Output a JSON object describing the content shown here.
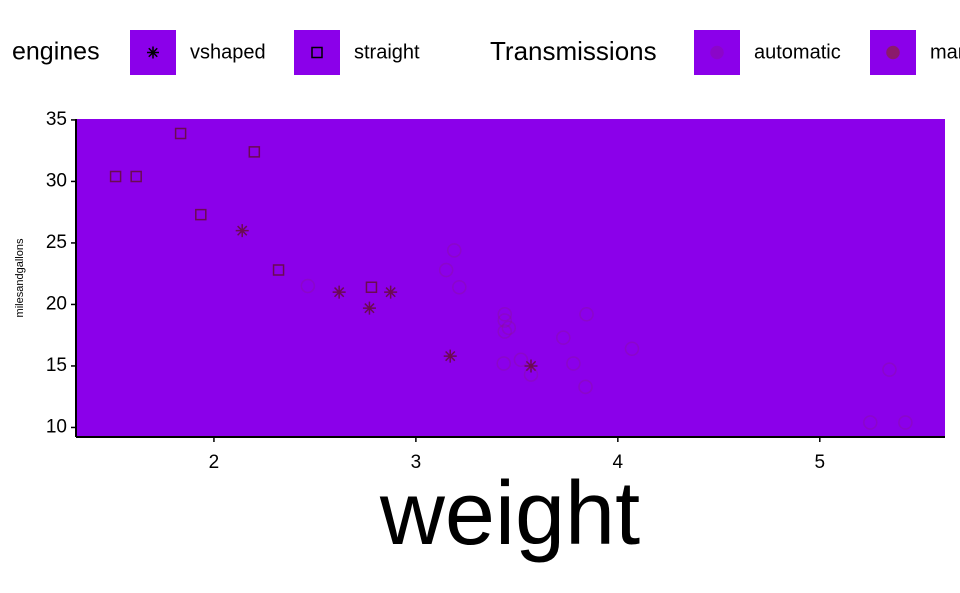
{
  "chart_data": {
    "type": "scatter",
    "x_label": "weight",
    "y_label": "milesandgallons",
    "xlim": [
      1.317,
      5.62
    ],
    "ylim": [
      9.225,
      35.075
    ],
    "xticks": [
      2,
      3,
      4,
      5
    ],
    "yticks": [
      10,
      15,
      20,
      25,
      30,
      35
    ],
    "panel_color": "#8b00ea",
    "x_label_color": "#ff0000",
    "y_label_color": "#00ff00",
    "legends": [
      {
        "title": "engines",
        "entries": [
          {
            "label": "vshaped",
            "shape": "asterisk",
            "color": "#000000",
            "opacity": 1
          },
          {
            "label": "straight",
            "shape": "square",
            "color": "#000000",
            "opacity": 1
          }
        ]
      },
      {
        "title": "Transmissions",
        "entries": [
          {
            "label": "automatic",
            "shape": "circle",
            "color": "#8b1a6b",
            "opacity": 0.25
          },
          {
            "label": "manual",
            "shape": "circle",
            "color": "#8b1a6b",
            "opacity": 1
          }
        ]
      }
    ],
    "series": [
      {
        "shape": "square",
        "color": "#6b0a52",
        "opacity": 1,
        "x": [
          1.615,
          1.513,
          1.835,
          2.2,
          1.935,
          2.32,
          2.78
        ],
        "values": [
          30.4,
          30.4,
          33.9,
          32.4,
          27.3,
          22.8,
          21.4
        ]
      },
      {
        "shape": "asterisk",
        "color": "#6b0a52",
        "opacity": 1,
        "x": [
          2.14,
          2.62,
          2.77,
          2.875,
          3.17,
          3.57
        ],
        "values": [
          26,
          21,
          19.7,
          21,
          15.8,
          15
        ]
      },
      {
        "shape": "circle",
        "color": "#8b1a6b",
        "opacity": 0.25,
        "x": [
          3.215,
          3.44,
          3.46,
          3.57,
          3.19,
          3.15,
          3.44,
          3.44,
          4.07,
          3.73,
          3.78,
          5.25,
          5.424,
          5.345,
          2.465,
          3.52,
          3.435,
          3.84,
          3.845
        ],
        "values": [
          21.4,
          18.7,
          18.1,
          14.3,
          24.4,
          22.8,
          19.2,
          17.8,
          16.4,
          17.3,
          15.2,
          10.4,
          10.4,
          14.7,
          21.5,
          15.5,
          15.2,
          13.3,
          19.2
        ]
      }
    ]
  }
}
